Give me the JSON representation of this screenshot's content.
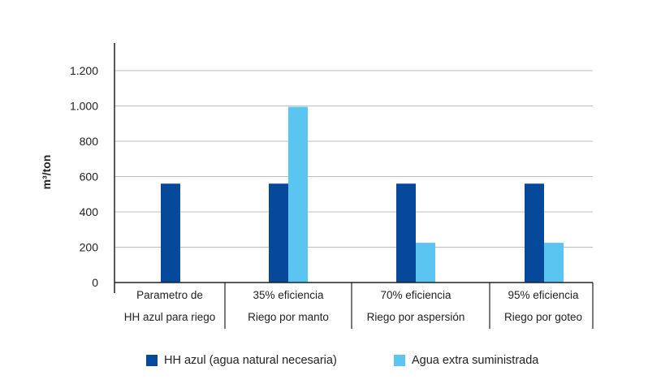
{
  "chart_data": {
    "type": "bar",
    "ylabel": "m³/ton",
    "ylim": [
      0,
      1200
    ],
    "yticks": [
      0,
      200,
      400,
      600,
      800,
      1000,
      1200
    ],
    "ytick_labels": [
      "0",
      "200",
      "400",
      "600",
      "800",
      "1.000",
      "1.200"
    ],
    "grid": true,
    "categories": [
      {
        "line1": "Parametro de",
        "line2": "HH azul para riego"
      },
      {
        "line1": "35% eficiencia",
        "line2": "Riego por manto"
      },
      {
        "line1": "70% eficiencia",
        "line2": "Riego por aspersión"
      },
      {
        "line1": "95% eficiencia",
        "line2": "Riego por goteo"
      }
    ],
    "series": [
      {
        "name": "HH azul (agua natural necesaria)",
        "color": "#06489a",
        "values": [
          560,
          560,
          560,
          560
        ]
      },
      {
        "name": "Agua extra suministrada",
        "color": "#5bc5f2",
        "values": [
          0,
          995,
          225,
          225
        ]
      }
    ],
    "legend_position": "bottom"
  }
}
